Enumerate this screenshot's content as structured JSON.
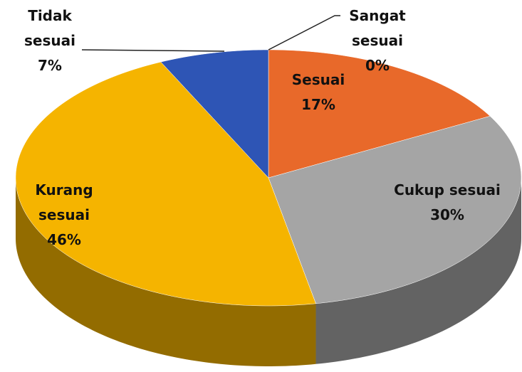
{
  "chart_data": {
    "type": "pie3d",
    "categories": [
      "Sangat sesuai",
      "Sesuai",
      "Cukup sesuai",
      "Kurang sesuai",
      "Tidak sesuai"
    ],
    "values": [
      0,
      17,
      30,
      46,
      7
    ],
    "value_labels": [
      "0%",
      "17%",
      "30%",
      "46%",
      "7%"
    ],
    "colors": [
      "#2f4f9e",
      "#e8692a",
      "#a5a5a5",
      "#f5b400",
      "#2e55b5"
    ]
  }
}
